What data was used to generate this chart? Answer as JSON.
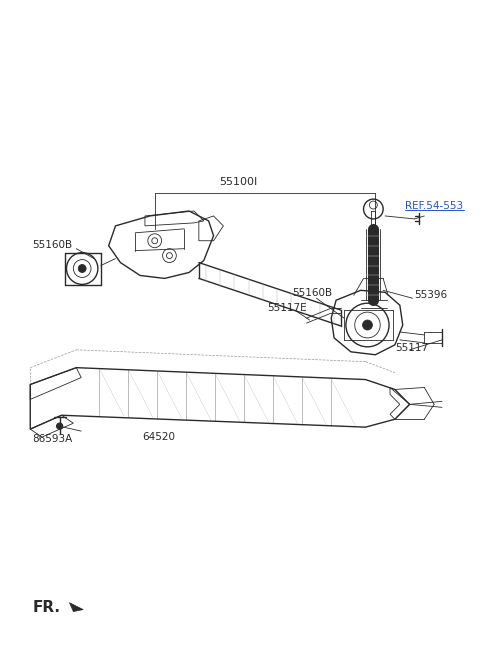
{
  "bg_color": "#ffffff",
  "line_color": "#2a2a2a",
  "label_color": "#2a2a2a",
  "ref_color": "#2255cc",
  "fig_width": 4.8,
  "fig_height": 6.55,
  "dpi": 100,
  "label_55100I": "55100I",
  "label_55160B": "55160B",
  "label_55117E": "55117E",
  "label_55396": "55396",
  "label_REF": "REF.54-553",
  "label_86593A": "86593A",
  "label_64520": "64520",
  "label_55117": "55117",
  "label_FR": "FR."
}
